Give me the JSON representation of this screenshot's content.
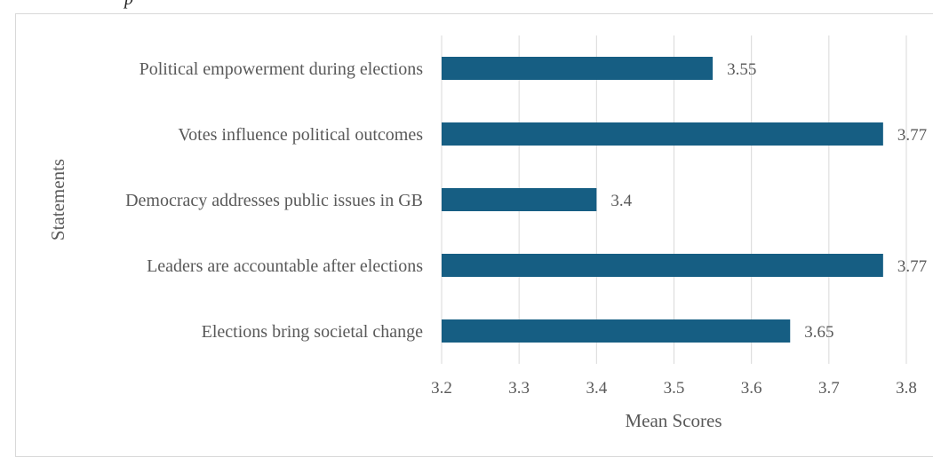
{
  "top_fragment": "p",
  "chart_data": {
    "type": "bar",
    "orientation": "horizontal",
    "title": "",
    "xlabel": "Mean Scores",
    "ylabel": "Statements",
    "xlim": [
      3.2,
      3.8
    ],
    "xticks": [
      "3.2",
      "3.3",
      "3.4",
      "3.5",
      "3.6",
      "3.7",
      "3.8"
    ],
    "grid": true,
    "bar_color": "#165e83",
    "categories": [
      "Political empowerment during elections",
      "Votes influence political outcomes",
      "Democracy addresses public issues in GB",
      "Leaders are accountable after elections",
      "Elections bring societal change"
    ],
    "values": [
      3.55,
      3.77,
      3.4,
      3.77,
      3.65
    ],
    "value_labels": [
      "3.55",
      "3.77",
      "3.4",
      "3.77",
      "3.65"
    ]
  }
}
